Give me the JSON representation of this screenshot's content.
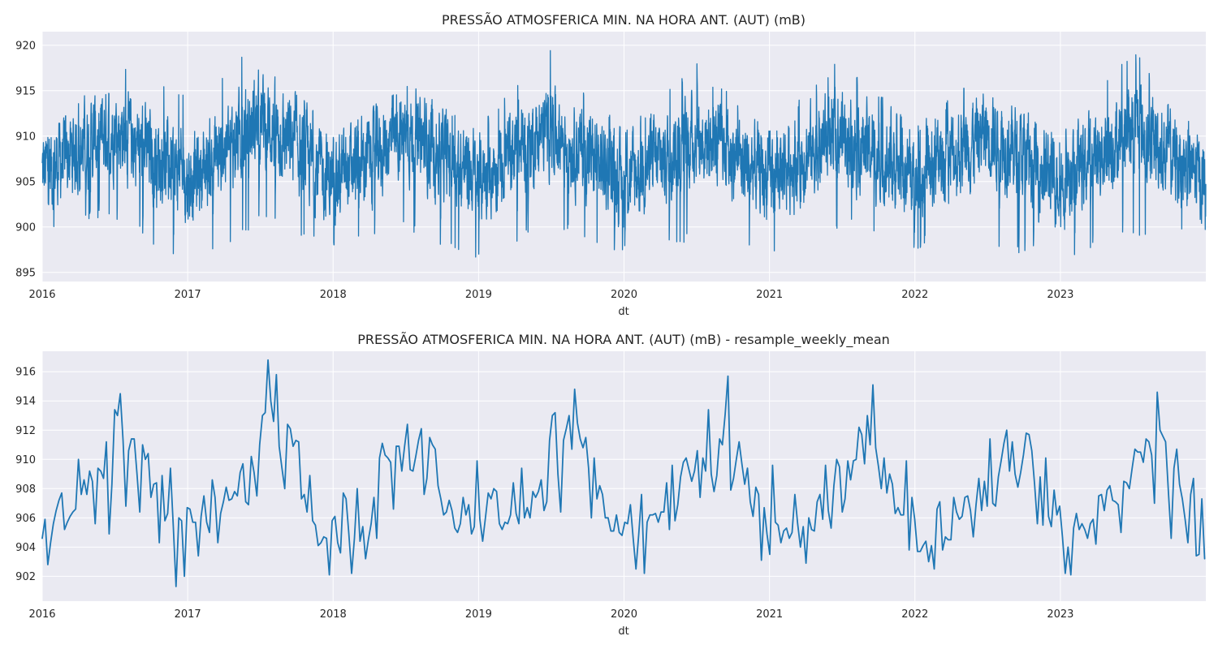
{
  "colors": {
    "series": "#1f77b4",
    "plot_background": "#eaeaf2",
    "grid": "#ffffff",
    "text": "#262626"
  },
  "chart_data": [
    {
      "type": "line",
      "title": "PRESSÃO ATMOSFERICA MIN. NA HORA ANT. (AUT) (mB)",
      "xlabel": "dt",
      "ylabel": "",
      "xlim": [
        2016.0,
        2024.0
      ],
      "ylim": [
        894,
        921.5
      ],
      "xticks": [
        2016,
        2017,
        2018,
        2019,
        2020,
        2021,
        2022,
        2023
      ],
      "xtick_labels": [
        "2016",
        "2017",
        "2018",
        "2019",
        "2020",
        "2021",
        "2022",
        "2023"
      ],
      "yticks": [
        895,
        900,
        905,
        910,
        915,
        920
      ],
      "ytick_labels": [
        "895",
        "900",
        "905",
        "910",
        "915",
        "920"
      ],
      "grid": true,
      "legend": "none",
      "series": [
        {
          "resolution": "hourly (approximated, dense noisy series)",
          "x": [
            2016.0,
            2016.5,
            2017.0,
            2017.5,
            2018.0,
            2018.5,
            2019.0,
            2019.5,
            2020.0,
            2020.5,
            2021.0,
            2021.5,
            2022.0,
            2022.5,
            2023.0,
            2023.5,
            2024.0
          ],
          "y": [
            906.0,
            911.0,
            905.0,
            912.0,
            905.0,
            910.5,
            905.5,
            911.0,
            905.0,
            910.0,
            905.5,
            910.5,
            905.0,
            910.5,
            905.0,
            911.0,
            905.0
          ],
          "y_min": [
            899.5,
            901.0,
            895.0,
            900.5,
            897.5,
            899.5,
            896.0,
            900.0,
            896.8,
            898.5,
            896.8,
            900.0,
            897.5,
            898.0,
            896.0,
            899.0,
            899.0
          ],
          "y_max": [
            909.5,
            918.0,
            914.5,
            920.2,
            910.0,
            916.0,
            911.0,
            920.0,
            910.5,
            918.0,
            910.5,
            919.0,
            911.0,
            918.0,
            910.0,
            920.2,
            910.0
          ]
        }
      ]
    },
    {
      "type": "line",
      "title": "PRESSÃO ATMOSFERICA MIN. NA HORA ANT. (AUT) (mB) - resample_weekly_mean",
      "xlabel": "dt",
      "ylabel": "",
      "xlim": [
        2016.0,
        2024.0
      ],
      "ylim": [
        900.3,
        917.4
      ],
      "xticks": [
        2016,
        2017,
        2018,
        2019,
        2020,
        2021,
        2022,
        2023
      ],
      "xtick_labels": [
        "2016",
        "2017",
        "2018",
        "2019",
        "2020",
        "2021",
        "2022",
        "2023"
      ],
      "yticks": [
        902,
        904,
        906,
        908,
        910,
        912,
        914,
        916
      ],
      "ytick_labels": [
        "902",
        "904",
        "906",
        "908",
        "910",
        "912",
        "914",
        "916"
      ],
      "grid": true,
      "legend": "none",
      "series": [
        {
          "resolution": "weekly",
          "x_start": 2016.0,
          "x_step_weeks": 1,
          "y": [
            904.6,
            905.9,
            902.8,
            904.3,
            905.6,
            906.5,
            907.2,
            907.7,
            905.2,
            905.7,
            906.1,
            906.4,
            906.6,
            910.0,
            907.6,
            908.6,
            907.6,
            909.2,
            908.5,
            905.6,
            909.4,
            909.2,
            908.7,
            911.2,
            904.9,
            908.3,
            913.4,
            913.0,
            914.5,
            911.3,
            906.8,
            910.6,
            911.4,
            911.4,
            909.0,
            906.4,
            911.0,
            910.0,
            910.4,
            907.4,
            908.3,
            908.4,
            904.3,
            908.9,
            905.8,
            906.3,
            909.4,
            905.5,
            901.3,
            906.0,
            905.8,
            902.0,
            906.7,
            906.6,
            905.7,
            905.7,
            903.4,
            906.1,
            907.5,
            905.7,
            905.0,
            908.6,
            907.4,
            904.3,
            906.3,
            907.1,
            908.1,
            907.2,
            907.3,
            907.8,
            907.5,
            909.1,
            909.7,
            907.1,
            906.9,
            910.2,
            909.1,
            907.5,
            911.0,
            913.0,
            913.2,
            916.8,
            914.0,
            912.6,
            915.8,
            910.9,
            909.4,
            908.0,
            912.4,
            912.1,
            910.9,
            911.3,
            911.2,
            907.3,
            907.6,
            906.4,
            908.9,
            905.8,
            905.5,
            904.1,
            904.3,
            904.7,
            904.6,
            902.1,
            905.8,
            906.1,
            904.3,
            903.6,
            907.7,
            907.3,
            904.9,
            902.2,
            904.6,
            908.0,
            904.4,
            905.4,
            903.2,
            904.5,
            905.6,
            907.4,
            904.6,
            910.1,
            911.1,
            910.3,
            910.1,
            909.8,
            906.6,
            910.9,
            910.9,
            909.2,
            910.9,
            912.4,
            909.3,
            909.2,
            910.2,
            911.3,
            912.1,
            907.6,
            908.7,
            911.5,
            911.0,
            910.7,
            908.2,
            907.3,
            906.2,
            906.4,
            907.2,
            906.5,
            905.3,
            905.0,
            905.6,
            907.4,
            906.2,
            906.9,
            904.9,
            905.4,
            909.9,
            905.9,
            904.4,
            906.0,
            907.7,
            907.3,
            908.0,
            907.8,
            905.6,
            905.2,
            905.7,
            905.6,
            906.2,
            908.4,
            906.3,
            905.6,
            909.4,
            906.0,
            906.7,
            906.0,
            907.8,
            907.4,
            907.8,
            908.6,
            906.5,
            907.1,
            911.3,
            913.0,
            913.2,
            909.0,
            906.4,
            911.3,
            912.1,
            913.0,
            910.7,
            914.8,
            912.5,
            911.4,
            910.8,
            911.5,
            909.4,
            906.0,
            910.1,
            907.3,
            908.2,
            907.6,
            906.0,
            906.0,
            905.1,
            905.1,
            906.2,
            905.0,
            904.8,
            905.7,
            905.6,
            906.9,
            904.6,
            902.5,
            904.9,
            907.6,
            902.2,
            905.7,
            906.2,
            906.2,
            906.3,
            905.7,
            906.4,
            906.4,
            908.4,
            905.2,
            909.6,
            905.8,
            906.9,
            908.8,
            909.8,
            910.1,
            909.3,
            908.5,
            909.2,
            910.6,
            907.4,
            910.1,
            909.2,
            913.4,
            909.0,
            907.8,
            908.9,
            911.4,
            911.0,
            913.1,
            915.7,
            907.9,
            908.7,
            910.0,
            911.2,
            909.7,
            908.3,
            909.4,
            907.1,
            906.1,
            908.1,
            907.6,
            903.1,
            906.7,
            904.9,
            903.5,
            909.6,
            905.7,
            905.5,
            904.3,
            905.1,
            905.3,
            904.6,
            905.0,
            907.6,
            905.6,
            904.0,
            905.4,
            902.9,
            906.0,
            905.2,
            905.1,
            907.1,
            907.6,
            905.9,
            909.6,
            906.5,
            905.3,
            908.2,
            910.0,
            909.5,
            906.4,
            907.3,
            909.9,
            908.6,
            909.9,
            910.0,
            912.2,
            911.7,
            909.7,
            913.0,
            911.0,
            915.1,
            910.8,
            909.5,
            908.0,
            910.1,
            907.7,
            909.0,
            908.3,
            906.3,
            906.7,
            906.2,
            906.2,
            909.9,
            903.8,
            907.4,
            905.9,
            903.7,
            903.7,
            904.1,
            904.4,
            903.0,
            904.1,
            902.5,
            906.6,
            907.1,
            903.8,
            904.7,
            904.5,
            904.5,
            907.4,
            906.4,
            905.9,
            906.1,
            907.4,
            907.5,
            906.5,
            904.7,
            906.9,
            908.7,
            906.5,
            908.5,
            906.8,
            911.4,
            907.0,
            906.8,
            908.8,
            909.9,
            911.1,
            912.0,
            909.2,
            911.2,
            909.0,
            908.1,
            909.1,
            910.3,
            911.8,
            911.7,
            910.6,
            908.3,
            905.6,
            908.8,
            905.5,
            910.1,
            906.1,
            905.4,
            907.9,
            906.2,
            906.8,
            904.7,
            902.2,
            904.0,
            902.1,
            905.3,
            906.3,
            905.2,
            905.6,
            905.2,
            904.6,
            905.6,
            905.9,
            904.2,
            907.5,
            907.6,
            906.5,
            907.9,
            908.2,
            907.2,
            907.1,
            906.9,
            905.0,
            908.5,
            908.4,
            908.0,
            909.4,
            910.7,
            910.5,
            910.5,
            909.8,
            911.4,
            911.2,
            910.3,
            907.0,
            914.6,
            912.0,
            911.6,
            911.2,
            907.8,
            904.6,
            909.4,
            910.7,
            908.3,
            907.3,
            905.9,
            904.3,
            907.6,
            908.7,
            903.4,
            903.5,
            907.3,
            903.2,
            906.6,
            905.3,
            906.4,
            906.4,
            904.2,
            905.9
          ]
        }
      ]
    }
  ]
}
